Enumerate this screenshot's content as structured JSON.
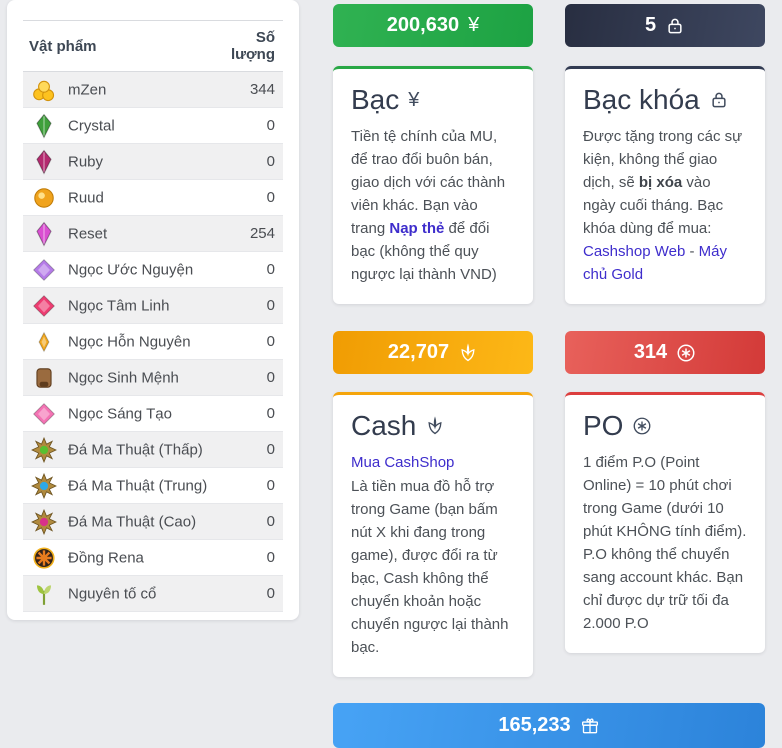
{
  "inventory": {
    "headers": {
      "item": "Vật phẩm",
      "qty": "Số lượng"
    },
    "rows": [
      {
        "name": "mZen",
        "qty": "344",
        "icon": "coins",
        "color": "#fdc21f"
      },
      {
        "name": "Crystal",
        "qty": "0",
        "icon": "wing",
        "color": "#3fa03c"
      },
      {
        "name": "Ruby",
        "qty": "0",
        "icon": "wing",
        "color": "#b42a6f"
      },
      {
        "name": "Ruud",
        "qty": "0",
        "icon": "blob",
        "color": "#f0a31d"
      },
      {
        "name": "Reset",
        "qty": "254",
        "icon": "wing",
        "color": "#d94fd1"
      },
      {
        "name": "Ngọc Ước Nguyện",
        "qty": "0",
        "icon": "gem",
        "color": "#b57be8"
      },
      {
        "name": "Ngọc Tâm Linh",
        "qty": "0",
        "icon": "gem",
        "color": "#ee3d72"
      },
      {
        "name": "Ngọc Hỗn Nguyên",
        "qty": "0",
        "icon": "gemsmall",
        "color": "#f2a81f"
      },
      {
        "name": "Ngọc Sinh Mệnh",
        "qty": "0",
        "icon": "box",
        "color": "#9a6b3f"
      },
      {
        "name": "Ngọc Sáng Tạo",
        "qty": "0",
        "icon": "gem",
        "color": "#f473b4"
      },
      {
        "name": "Đá Ma Thuật (Thấp)",
        "qty": "0",
        "icon": "star",
        "color": "#58c030"
      },
      {
        "name": "Đá Ma Thuật (Trung)",
        "qty": "0",
        "icon": "star",
        "color": "#2da9e8"
      },
      {
        "name": "Đá Ma Thuật (Cao)",
        "qty": "0",
        "icon": "star",
        "color": "#d8308a"
      },
      {
        "name": "Đồng Rena",
        "qty": "0",
        "icon": "wheel",
        "color": "#e87c1e"
      },
      {
        "name": "Nguyên tố cổ",
        "qty": "0",
        "icon": "sprout",
        "color": "#9ec43f"
      }
    ]
  },
  "currencies": {
    "bac": {
      "amount": "200,630",
      "symbol": "¥",
      "title": "Bạc",
      "accent": "#28a745",
      "desc_segments": [
        {
          "t": "Tiền tệ chính của MU, để trao đổi buôn bán, giao dịch với các thành viên khác. Bạn vào trang ",
          "s": "p"
        },
        {
          "t": "Nạp thẻ",
          "s": "bl"
        },
        {
          "t": " để đổi bạc (không thể quy ngược lại thành VND)",
          "s": "p"
        }
      ]
    },
    "bac_khoa": {
      "amount": "5",
      "title": "Bạc khóa",
      "accent": "#323b52",
      "desc_segments": [
        {
          "t": "Được tặng trong các sự kiện, không thể giao dịch, sẽ ",
          "s": "p"
        },
        {
          "t": "bị xóa",
          "s": "b"
        },
        {
          "t": " vào ngày cuối tháng. Bạc khóa dùng để mua: ",
          "s": "p"
        },
        {
          "t": "Cashshop Web",
          "s": "l"
        },
        {
          "t": " - ",
          "s": "p"
        },
        {
          "t": "Máy chủ Gold",
          "s": "l"
        }
      ]
    },
    "cash": {
      "amount": "22,707",
      "title": "Cash",
      "accent": "#f5a50b",
      "link_label": "Mua CashShop",
      "desc": "Là tiền mua đồ hỗ trợ trong Game (bạn bấm nút X khi đang trong game), được đổi ra từ bạc, Cash không thể chuyển khoản hoặc chuyển ngược lại thành bạc."
    },
    "po": {
      "amount": "314",
      "title": "PO",
      "accent": "#dc3e3e",
      "desc": "1 điểm P.O (Point Online) = 10 phút chơi trong Game (dưới 10 phút KHÔNG tính điểm). P.O không thể chuyển sang account khác. Bạn chỉ được dự trữ tối đa 2.000 P.O"
    },
    "gift": {
      "amount": "165,233",
      "accent": "#2c83da"
    }
  }
}
